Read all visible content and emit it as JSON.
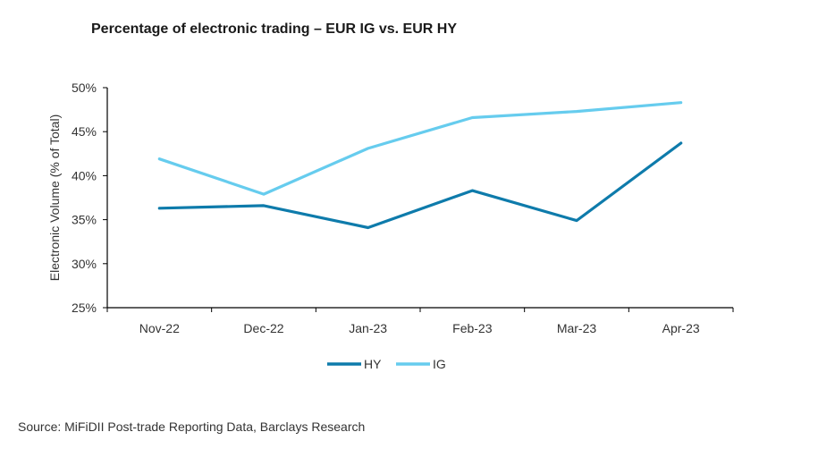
{
  "title": "Percentage of electronic trading – EUR IG vs. EUR HY",
  "source": "Source: MiFiDII Post-trade Reporting Data, Barclays Research",
  "chart_data": {
    "type": "line",
    "title": "Percentage of electronic trading – EUR IG vs. EUR HY",
    "xlabel": "",
    "ylabel": "Electronic Volume (% of Total)",
    "categories": [
      "Nov-22",
      "Dec-22",
      "Jan-23",
      "Feb-23",
      "Mar-23",
      "Apr-23"
    ],
    "y_ticks": [
      "25%",
      "30%",
      "35%",
      "40%",
      "45%",
      "50%"
    ],
    "y_tick_values": [
      25,
      30,
      35,
      40,
      45,
      50
    ],
    "ylim": [
      25,
      50
    ],
    "grid": false,
    "legend_position": "bottom",
    "series": [
      {
        "name": "HY",
        "color": "#0e7bab",
        "values": [
          36.3,
          36.6,
          34.1,
          38.3,
          34.9,
          43.7
        ]
      },
      {
        "name": "IG",
        "color": "#66ccee",
        "values": [
          41.9,
          37.9,
          43.1,
          46.6,
          47.3,
          48.3
        ]
      }
    ]
  }
}
